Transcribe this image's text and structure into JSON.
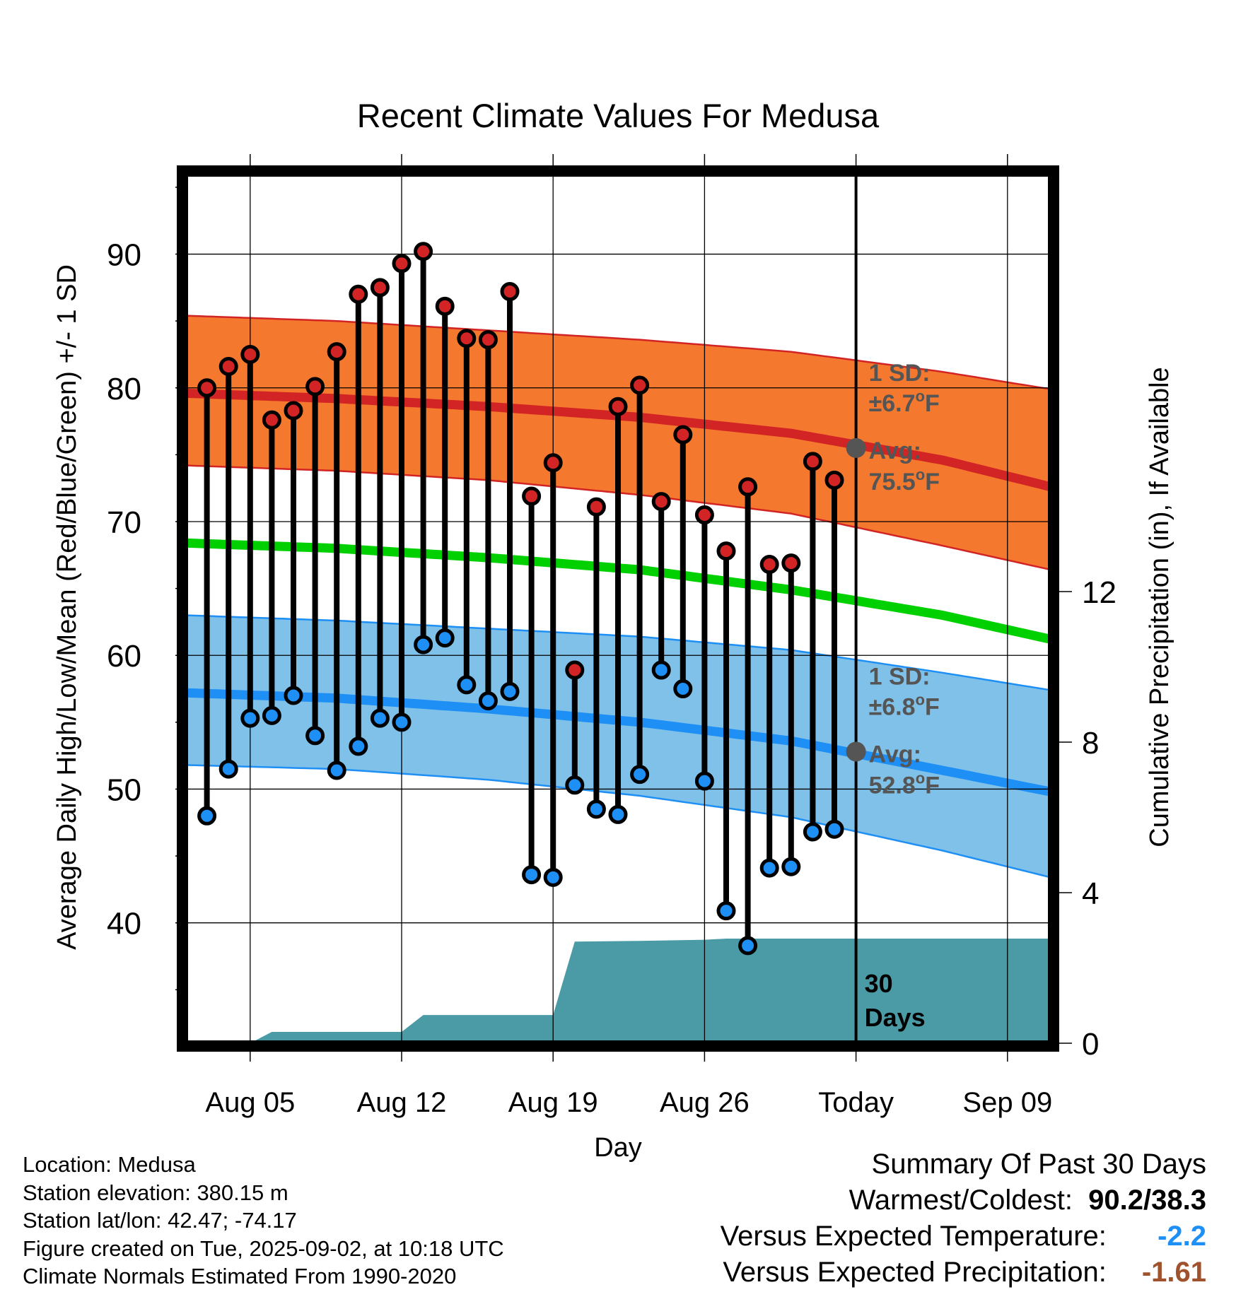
{
  "chart_data": {
    "type": "line",
    "title": "Recent Climate Values For Medusa",
    "xlabel": "Day",
    "ylabel": "Average Daily High/Low/Mean (Red/Blue/Green) +/- 1 SD",
    "y2label": "Cumulative Precipitation (in), If Available",
    "x_ticks": [
      "Aug 05",
      "Aug 12",
      "Aug 19",
      "Aug 26",
      "Today",
      "Sep 09"
    ],
    "y_ticks": [
      40,
      50,
      60,
      70,
      80,
      90
    ],
    "y2_ticks": [
      0,
      4,
      8,
      12
    ],
    "ylim": [
      31,
      96
    ],
    "y2lim": [
      0,
      23.1
    ],
    "xlim": [
      "2025-08-02",
      "2025-09-11"
    ],
    "grid": true,
    "today": "2025-09-02",
    "today_annotation": [
      "30",
      "Days"
    ],
    "dates": [
      "2025-08-03",
      "2025-08-04",
      "2025-08-05",
      "2025-08-06",
      "2025-08-07",
      "2025-08-08",
      "2025-08-09",
      "2025-08-10",
      "2025-08-11",
      "2025-08-12",
      "2025-08-13",
      "2025-08-14",
      "2025-08-15",
      "2025-08-16",
      "2025-08-17",
      "2025-08-18",
      "2025-08-19",
      "2025-08-20",
      "2025-08-21",
      "2025-08-22",
      "2025-08-23",
      "2025-08-24",
      "2025-08-25",
      "2025-08-26",
      "2025-08-27",
      "2025-08-28",
      "2025-08-29",
      "2025-08-30",
      "2025-08-31",
      "2025-09-01"
    ],
    "observed_high": [
      80.0,
      81.6,
      82.5,
      77.6,
      78.3,
      80.1,
      82.7,
      87.0,
      87.5,
      89.3,
      90.2,
      86.1,
      83.7,
      83.6,
      87.2,
      71.9,
      74.4,
      58.9,
      71.1,
      78.6,
      80.2,
      71.5,
      76.5,
      70.5,
      67.8,
      72.6,
      66.8,
      66.9,
      74.5,
      73.1
    ],
    "observed_low": [
      48.0,
      51.5,
      55.3,
      55.5,
      57.0,
      54.0,
      51.4,
      53.2,
      55.3,
      55.0,
      60.8,
      61.3,
      57.8,
      56.6,
      57.3,
      43.6,
      43.4,
      50.3,
      48.5,
      48.1,
      51.1,
      58.9,
      57.5,
      50.6,
      40.9,
      38.3,
      44.1,
      44.2,
      46.8,
      47.0
    ],
    "normal_high": {
      "x": [
        "2025-08-02",
        "2025-08-09",
        "2025-08-16",
        "2025-08-23",
        "2025-08-30",
        "2025-09-06",
        "2025-09-11"
      ],
      "avg": [
        79.6,
        79.2,
        78.6,
        77.8,
        76.6,
        74.6,
        72.6
      ],
      "upper": [
        85.4,
        85.0,
        84.3,
        83.6,
        82.7,
        81.2,
        79.9
      ],
      "lower": [
        74.2,
        73.8,
        73.1,
        72.0,
        70.6,
        68.2,
        66.4
      ]
    },
    "normal_low": {
      "x": [
        "2025-08-02",
        "2025-08-09",
        "2025-08-16",
        "2025-08-23",
        "2025-08-30",
        "2025-09-06",
        "2025-09-11"
      ],
      "avg": [
        57.2,
        56.8,
        56.0,
        55.0,
        53.6,
        51.4,
        49.8
      ],
      "upper": [
        63.0,
        62.6,
        62.0,
        61.4,
        60.4,
        58.7,
        57.4
      ],
      "lower": [
        51.8,
        51.5,
        50.7,
        49.5,
        47.9,
        45.4,
        43.4
      ]
    },
    "normal_mean": {
      "x": [
        "2025-08-02",
        "2025-08-09",
        "2025-08-16",
        "2025-08-23",
        "2025-08-30",
        "2025-09-06",
        "2025-09-11"
      ],
      "avg": [
        68.4,
        68.0,
        67.3,
        66.4,
        64.9,
        63.0,
        61.2
      ]
    },
    "precipitation": {
      "x": [
        "2025-08-02",
        "2025-08-04",
        "2025-08-05",
        "2025-08-06",
        "2025-08-07",
        "2025-08-12",
        "2025-08-13",
        "2025-08-19",
        "2025-08-20",
        "2025-08-23",
        "2025-08-26",
        "2025-08-27",
        "2025-09-11"
      ],
      "y": [
        0,
        0,
        0,
        0.3,
        0.3,
        0.3,
        0.75,
        0.75,
        2.7,
        2.72,
        2.75,
        2.78,
        2.78
      ]
    },
    "annotations": [
      {
        "line1": "1 SD:",
        "line2": "±6.7",
        "unit": "F",
        "line3": "Avg:",
        "line4": "75.5",
        "avg_value": 75.5
      },
      {
        "line1": "1 SD:",
        "line2": "±6.8",
        "unit": "F",
        "line3": "Avg:",
        "line4": "52.8",
        "avg_value": 52.8
      }
    ],
    "colors": {
      "high_band": "#f4792e",
      "high_line": "#d22424",
      "low_band": "#7fc1e8",
      "low_line": "#1e8ff5",
      "mean_line": "#00d000",
      "precip": "#4a9ba6",
      "high_marker": "#d22424",
      "low_marker": "#1e8ff5",
      "annotation": "#555555"
    }
  },
  "footer": {
    "location": "Location: Medusa",
    "elevation": "Station elevation: 380.15 m",
    "latlon": "Station lat/lon: 42.47; -74.17",
    "created": "Figure created on Tue, 2025-09-02, at 10:18 UTC",
    "normals": "Climate Normals Estimated From 1990-2020"
  },
  "summary": {
    "heading": "Summary Of Past 30 Days",
    "warmest_label": "Warmest/Coldest:",
    "warmest_value": "90.2/38.3",
    "temp_label": "Versus Expected Temperature:",
    "temp_value": "-2.2",
    "temp_color": "#1e8ff5",
    "precip_label": "Versus Expected Precipitation:",
    "precip_value": "-1.61",
    "precip_color": "#a0522d"
  }
}
